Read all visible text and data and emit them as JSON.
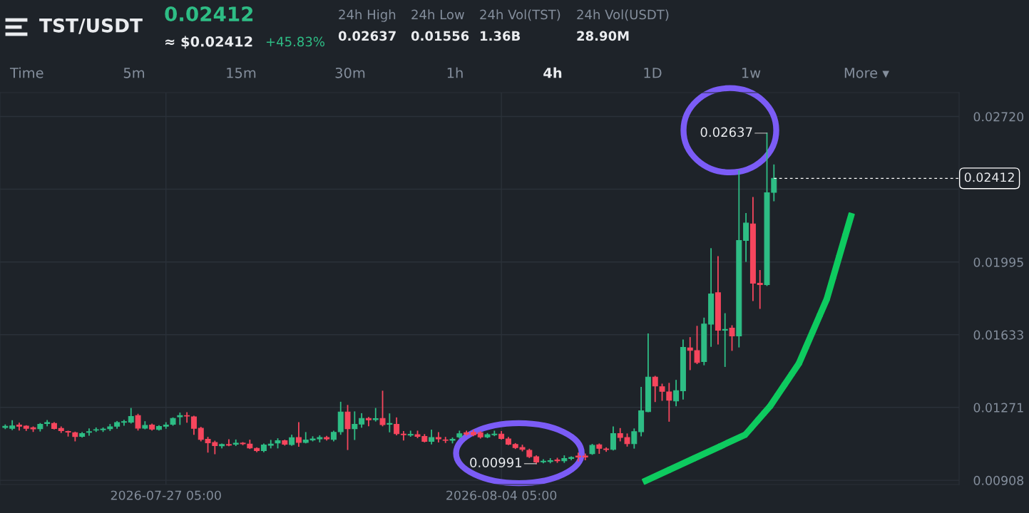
{
  "chart_data": {
    "type": "candlestick",
    "title": "TST/USDT",
    "annotations": [
      "0.02412",
      "≈ $0.02412",
      "+45.83%",
      "24h High",
      "0.02637",
      "24h Low",
      "0.01556",
      "24h Vol(TST)",
      "1.36B",
      "24h Vol(USDT)",
      "28.90M",
      "Time",
      "5m",
      "15m",
      "30m",
      "1h",
      "4h",
      "1D",
      "1w",
      "More ▾",
      {
        "text": "0.02637",
        "x": "2026-08-10T13:00",
        "y": 0.02637
      },
      {
        "text": "0.00991",
        "x": "2026-08-05T01:00",
        "y": 0.00991
      }
    ],
    "x": [
      "2026-07-23T09:00",
      "2026-07-23T13:00",
      "2026-07-23T17:00",
      "2026-07-23T21:00",
      "2026-07-24T01:00",
      "2026-07-24T05:00",
      "2026-07-24T09:00",
      "2026-07-24T13:00",
      "2026-07-24T17:00",
      "2026-07-24T21:00",
      "2026-07-25T01:00",
      "2026-07-25T05:00",
      "2026-07-25T09:00",
      "2026-07-25T13:00",
      "2026-07-25T17:00",
      "2026-07-25T21:00",
      "2026-07-26T01:00",
      "2026-07-26T05:00",
      "2026-07-26T09:00",
      "2026-07-26T13:00",
      "2026-07-26T17:00",
      "2026-07-26T21:00",
      "2026-07-27T01:00",
      "2026-07-27T05:00",
      "2026-07-27T09:00",
      "2026-07-27T13:00",
      "2026-07-27T17:00",
      "2026-07-27T21:00",
      "2026-07-28T01:00",
      "2026-07-28T05:00",
      "2026-07-28T09:00",
      "2026-07-28T13:00",
      "2026-07-28T17:00",
      "2026-07-28T21:00",
      "2026-07-29T01:00",
      "2026-07-29T05:00",
      "2026-07-29T09:00",
      "2026-07-29T13:00",
      "2026-07-29T17:00",
      "2026-07-29T21:00",
      "2026-07-30T01:00",
      "2026-07-30T05:00",
      "2026-07-30T09:00",
      "2026-07-30T13:00",
      "2026-07-30T17:00",
      "2026-07-30T21:00",
      "2026-07-31T01:00",
      "2026-07-31T05:00",
      "2026-07-31T09:00",
      "2026-07-31T13:00",
      "2026-07-31T17:00",
      "2026-07-31T21:00",
      "2026-08-01T01:00",
      "2026-08-01T05:00",
      "2026-08-01T09:00",
      "2026-08-01T13:00",
      "2026-08-01T17:00",
      "2026-08-01T21:00",
      "2026-08-02T01:00",
      "2026-08-02T05:00",
      "2026-08-02T09:00",
      "2026-08-02T13:00",
      "2026-08-02T17:00",
      "2026-08-02T21:00",
      "2026-08-03T01:00",
      "2026-08-03T05:00",
      "2026-08-03T09:00",
      "2026-08-03T13:00",
      "2026-08-03T17:00",
      "2026-08-03T21:00",
      "2026-08-04T01:00",
      "2026-08-04T05:00",
      "2026-08-04T09:00",
      "2026-08-04T13:00",
      "2026-08-04T17:00",
      "2026-08-04T21:00",
      "2026-08-05T01:00",
      "2026-08-05T05:00",
      "2026-08-05T09:00",
      "2026-08-05T13:00",
      "2026-08-05T17:00",
      "2026-08-05T21:00",
      "2026-08-06T01:00",
      "2026-08-06T05:00",
      "2026-08-06T09:00",
      "2026-08-06T13:00",
      "2026-08-06T17:00",
      "2026-08-06T21:00",
      "2026-08-07T01:00",
      "2026-08-07T05:00",
      "2026-08-07T09:00",
      "2026-08-07T13:00",
      "2026-08-07T17:00",
      "2026-08-07T21:00",
      "2026-08-08T01:00",
      "2026-08-08T05:00",
      "2026-08-08T09:00",
      "2026-08-08T13:00",
      "2026-08-08T17:00",
      "2026-08-08T21:00",
      "2026-08-09T01:00",
      "2026-08-09T05:00",
      "2026-08-09T09:00",
      "2026-08-09T13:00",
      "2026-08-09T17:00",
      "2026-08-09T21:00",
      "2026-08-10T01:00",
      "2026-08-10T05:00",
      "2026-08-10T09:00",
      "2026-08-10T13:00",
      "2026-08-10T17:00"
    ],
    "ohlc": [
      [
        0.01171,
        0.01183,
        0.01166,
        0.01177
      ],
      [
        0.01167,
        0.01204,
        0.01161,
        0.01179
      ],
      [
        0.01183,
        0.01192,
        0.01159,
        0.01177
      ],
      [
        0.01178,
        0.01179,
        0.01157,
        0.01167
      ],
      [
        0.0117,
        0.01173,
        0.01152,
        0.01164
      ],
      [
        0.01165,
        0.0119,
        0.01154,
        0.01187
      ],
      [
        0.01191,
        0.01205,
        0.0118,
        0.01196
      ],
      [
        0.01191,
        0.01194,
        0.01164,
        0.01166
      ],
      [
        0.01166,
        0.01173,
        0.01147,
        0.01155
      ],
      [
        0.01151,
        0.01152,
        0.01129,
        0.01148
      ],
      [
        0.01145,
        0.01147,
        0.01105,
        0.01126
      ],
      [
        0.01127,
        0.01145,
        0.01124,
        0.01141
      ],
      [
        0.01147,
        0.01163,
        0.01133,
        0.0115
      ],
      [
        0.01158,
        0.01168,
        0.01152,
        0.0116
      ],
      [
        0.0116,
        0.01168,
        0.01152,
        0.01163
      ],
      [
        0.01165,
        0.01185,
        0.01157,
        0.01174
      ],
      [
        0.01177,
        0.012,
        0.01168,
        0.01196
      ],
      [
        0.01197,
        0.01206,
        0.01183,
        0.012
      ],
      [
        0.01198,
        0.01265,
        0.01194,
        0.01226
      ],
      [
        0.0123,
        0.01236,
        0.01159,
        0.01168
      ],
      [
        0.01168,
        0.01199,
        0.01165,
        0.01181
      ],
      [
        0.01183,
        0.01187,
        0.01159,
        0.01163
      ],
      [
        0.01161,
        0.01179,
        0.01159,
        0.01176
      ],
      [
        0.01177,
        0.01194,
        0.01168,
        0.01183
      ],
      [
        0.01187,
        0.01218,
        0.01183,
        0.01216
      ],
      [
        0.01224,
        0.01242,
        0.01187,
        0.0123
      ],
      [
        0.0123,
        0.01244,
        0.01198,
        0.01228
      ],
      [
        0.01224,
        0.01226,
        0.01138,
        0.01167
      ],
      [
        0.01167,
        0.01171,
        0.01105,
        0.01112
      ],
      [
        0.01112,
        0.01121,
        0.01049,
        0.01095
      ],
      [
        0.01096,
        0.01102,
        0.01041,
        0.01081
      ],
      [
        0.0108,
        0.01088,
        0.0107,
        0.01086
      ],
      [
        0.01086,
        0.01109,
        0.01081,
        0.01083
      ],
      [
        0.01088,
        0.01108,
        0.01082,
        0.01093
      ],
      [
        0.01093,
        0.01095,
        0.01086,
        0.0109
      ],
      [
        0.01088,
        0.01107,
        0.01067,
        0.01069
      ],
      [
        0.01067,
        0.01069,
        0.01051,
        0.01056
      ],
      [
        0.01056,
        0.01088,
        0.01051,
        0.01084
      ],
      [
        0.01082,
        0.01106,
        0.0107,
        0.01088
      ],
      [
        0.01094,
        0.01114,
        0.0107,
        0.01105
      ],
      [
        0.01105,
        0.01107,
        0.01084,
        0.01088
      ],
      [
        0.01086,
        0.01132,
        0.01083,
        0.0112
      ],
      [
        0.01121,
        0.01194,
        0.01078,
        0.01097
      ],
      [
        0.01097,
        0.01145,
        0.01095,
        0.01109
      ],
      [
        0.01109,
        0.01124,
        0.01105,
        0.01114
      ],
      [
        0.01114,
        0.01129,
        0.011,
        0.01121
      ],
      [
        0.01121,
        0.01126,
        0.01109,
        0.01114
      ],
      [
        0.01112,
        0.01152,
        0.01105,
        0.01147
      ],
      [
        0.0115,
        0.01296,
        0.01138,
        0.01248
      ],
      [
        0.01248,
        0.0128,
        0.01062,
        0.01165
      ],
      [
        0.01165,
        0.01248,
        0.01112,
        0.01187
      ],
      [
        0.01188,
        0.01239,
        0.01173,
        0.01216
      ],
      [
        0.01216,
        0.0122,
        0.0118,
        0.01209
      ],
      [
        0.0121,
        0.01265,
        0.01204,
        0.01215
      ],
      [
        0.01216,
        0.01351,
        0.0118,
        0.01185
      ],
      [
        0.01187,
        0.01238,
        0.0115,
        0.01191
      ],
      [
        0.01187,
        0.01218,
        0.01135,
        0.0114
      ],
      [
        0.01138,
        0.0115,
        0.01109,
        0.01135
      ],
      [
        0.01133,
        0.01152,
        0.01128,
        0.01137
      ],
      [
        0.01135,
        0.01152,
        0.01121,
        0.01127
      ],
      [
        0.01126,
        0.01135,
        0.011,
        0.01102
      ],
      [
        0.01102,
        0.01157,
        0.0109,
        0.01121
      ],
      [
        0.01121,
        0.01145,
        0.011,
        0.01114
      ],
      [
        0.01109,
        0.01121,
        0.01097,
        0.01107
      ],
      [
        0.01107,
        0.01118,
        0.01095,
        0.01112
      ],
      [
        0.01124,
        0.01152,
        0.01119,
        0.0114
      ],
      [
        0.01145,
        0.01152,
        0.01133,
        0.01138
      ],
      [
        0.01147,
        0.01157,
        0.01131,
        0.01135
      ],
      [
        0.01145,
        0.0115,
        0.01119,
        0.01124
      ],
      [
        0.01124,
        0.0114,
        0.01121,
        0.01135
      ],
      [
        0.01135,
        0.01152,
        0.01131,
        0.01138
      ],
      [
        0.01138,
        0.0115,
        0.01114,
        0.01116
      ],
      [
        0.01114,
        0.01121,
        0.01086,
        0.01088
      ],
      [
        0.01086,
        0.0109,
        0.01067,
        0.01071
      ],
      [
        0.01071,
        0.01082,
        0.01055,
        0.01062
      ],
      [
        0.01057,
        0.01062,
        0.01022,
        0.01026
      ],
      [
        0.01025,
        0.01029,
        0.00991,
        0.00999
      ],
      [
        0.01,
        0.0101,
        0.00996,
        0.01003
      ],
      [
        0.01002,
        0.01015,
        0.00996,
        0.01006
      ],
      [
        0.01009,
        0.01017,
        0.00998,
        0.01005
      ],
      [
        0.01005,
        0.01029,
        0.00998,
        0.01016
      ],
      [
        0.01017,
        0.01024,
        0.01011,
        0.01022
      ],
      [
        0.01029,
        0.01043,
        0.01005,
        0.01024
      ],
      [
        0.01029,
        0.01038,
        0.01011,
        0.01024
      ],
      [
        0.01041,
        0.01086,
        0.01038,
        0.01082
      ],
      [
        0.01085,
        0.01088,
        0.01043,
        0.01067
      ],
      [
        0.01064,
        0.01069,
        0.01053,
        0.01061
      ],
      [
        0.01062,
        0.01173,
        0.0106,
        0.01141
      ],
      [
        0.01141,
        0.01165,
        0.01105,
        0.01121
      ],
      [
        0.01121,
        0.01138,
        0.01079,
        0.0109
      ],
      [
        0.0109,
        0.01163,
        0.01069,
        0.0115
      ],
      [
        0.0115,
        0.0137,
        0.0113,
        0.01254
      ],
      [
        0.0125,
        0.01636,
        0.0125,
        0.01422
      ],
      [
        0.01422,
        0.01425,
        0.01301,
        0.01378
      ],
      [
        0.01374,
        0.01386,
        0.01307,
        0.01351
      ],
      [
        0.01348,
        0.0139,
        0.01203,
        0.01307
      ],
      [
        0.01303,
        0.01405,
        0.0128,
        0.01354
      ],
      [
        0.01354,
        0.01606,
        0.01313,
        0.0157
      ],
      [
        0.01567,
        0.01618,
        0.0146,
        0.01555
      ],
      [
        0.01554,
        0.01674,
        0.0149,
        0.01495
      ],
      [
        0.01499,
        0.01715,
        0.01484,
        0.01686
      ],
      [
        0.01686,
        0.02061,
        0.01576,
        0.01836
      ],
      [
        0.01842,
        0.02021,
        0.01588,
        0.01656
      ],
      [
        0.01656,
        0.01737,
        0.01476,
        0.0166
      ],
      [
        0.01666,
        0.01677,
        0.01556,
        0.01627
      ],
      [
        0.01627,
        0.02449,
        0.01573,
        0.02102
      ],
      [
        0.02103,
        0.02236,
        0.01999,
        0.02189
      ],
      [
        0.02185,
        0.02316,
        0.01804,
        0.0189
      ],
      [
        0.01889,
        0.01952,
        0.01765,
        0.01883
      ],
      [
        0.01883,
        0.02637,
        0.01879,
        0.0234
      ],
      [
        0.02342,
        0.02478,
        0.02301,
        0.02412
      ]
    ],
    "colors": [
      "#2ebd85",
      "#2ebd85",
      "#f6465d",
      "#f6465d",
      "#f6465d",
      "#2ebd85",
      "#2ebd85",
      "#f6465d",
      "#f6465d",
      "#f6465d",
      "#f6465d",
      "#2ebd85",
      "#2ebd85",
      "#2ebd85",
      "#2ebd85",
      "#2ebd85",
      "#2ebd85",
      "#2ebd85",
      "#2ebd85",
      "#f6465d",
      "#2ebd85",
      "#f6465d",
      "#2ebd85",
      "#2ebd85",
      "#2ebd85",
      "#2ebd85",
      "#f6465d",
      "#f6465d",
      "#f6465d",
      "#f6465d",
      "#f6465d",
      "#2ebd85",
      "#f6465d",
      "#2ebd85",
      "#f6465d",
      "#f6465d",
      "#f6465d",
      "#2ebd85",
      "#2ebd85",
      "#2ebd85",
      "#f6465d",
      "#2ebd85",
      "#f6465d",
      "#2ebd85",
      "#2ebd85",
      "#2ebd85",
      "#f6465d",
      "#2ebd85",
      "#2ebd85",
      "#f6465d",
      "#2ebd85",
      "#2ebd85",
      "#f6465d",
      "#2ebd85",
      "#f6465d",
      "#2ebd85",
      "#f6465d",
      "#f6465d",
      "#2ebd85",
      "#f6465d",
      "#f6465d",
      "#2ebd85",
      "#f6465d",
      "#f6465d",
      "#2ebd85",
      "#2ebd85",
      "#f6465d",
      "#f6465d",
      "#f6465d",
      "#2ebd85",
      "#2ebd85",
      "#f6465d",
      "#f6465d",
      "#f6465d",
      "#f6465d",
      "#f6465d",
      "#f6465d",
      "#2ebd85",
      "#2ebd85",
      "#f6465d",
      "#2ebd85",
      "#2ebd85",
      "#f6465d",
      "#f6465d",
      "#2ebd85",
      "#f6465d",
      "#f6465d",
      "#2ebd85",
      "#f6465d",
      "#f6465d",
      "#2ebd85",
      "#2ebd85",
      "#2ebd85",
      "#f6465d",
      "#f6465d",
      "#f6465d",
      "#2ebd85",
      "#2ebd85",
      "#f6465d",
      "#f6465d",
      "#2ebd85",
      "#2ebd85",
      "#f6465d",
      "#2ebd85",
      "#f6465d",
      "#2ebd85",
      "#2ebd85",
      "#f6465d",
      "#f6465d",
      "#2ebd85",
      "#2ebd85"
    ],
    "xlim": [
      "2026-07-23T06:00",
      "2026-08-15T03:00"
    ],
    "xticks": [
      {
        "value": "2026-07-27T05:00",
        "label": "2026-07-27 05:00"
      },
      {
        "value": "2026-08-04T05:00",
        "label": "2026-08-04 05:00"
      }
    ],
    "ylim": [
      0.00887,
      0.02839
    ],
    "yticks": [
      {
        "value": 0.00908,
        "label": "0.00908"
      },
      {
        "value": 0.01271,
        "label": "0.01271"
      },
      {
        "value": 0.01633,
        "label": "0.01633"
      },
      {
        "value": 0.01995,
        "label": "0.01995"
      },
      {
        "value": 0.02358,
        "label": null
      },
      {
        "value": 0.0272,
        "label": "0.02720"
      }
    ],
    "ref_lines": [
      {
        "axis": "y",
        "value": 0.02412,
        "label": "0.02412",
        "color": "#ffffff",
        "line_style": "dashed"
      }
    ],
    "grid": true
  }
}
